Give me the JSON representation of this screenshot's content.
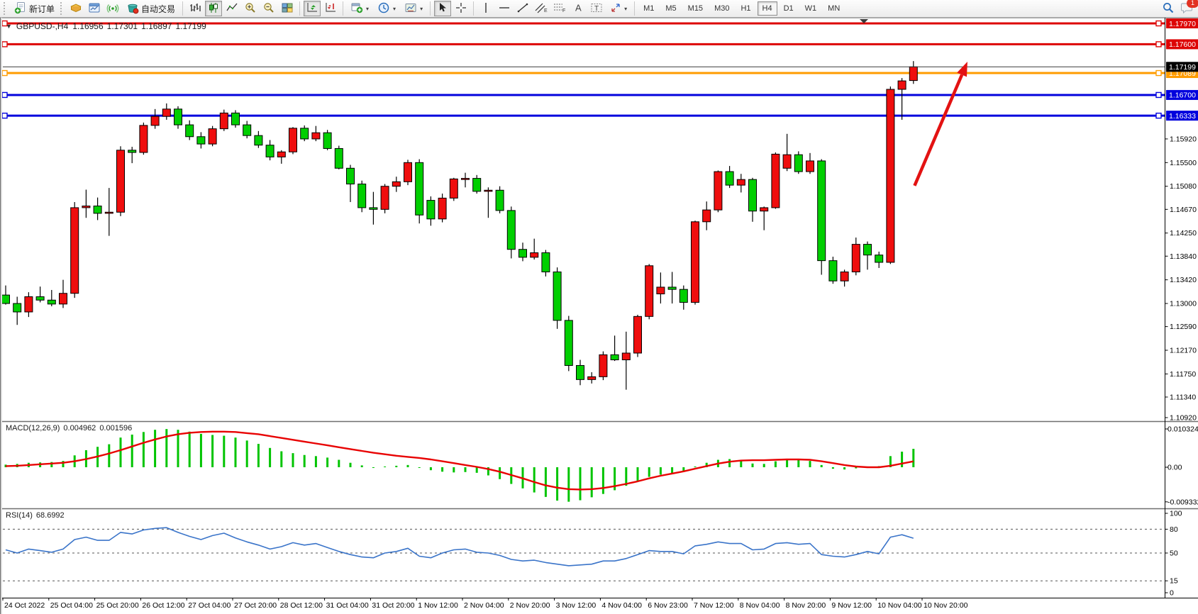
{
  "toolbar": {
    "new_order": "新订单",
    "auto_trading": "自动交易",
    "timeframes": [
      "M1",
      "M5",
      "M15",
      "M30",
      "H1",
      "H4",
      "D1",
      "W1",
      "MN"
    ],
    "active_timeframe": "H4",
    "badge_count": "1",
    "icons": [
      "new-order-icon",
      "box-icon",
      "chart-window-icon",
      "signal-icon",
      "auto-trading-icon",
      "bar-chart-icon",
      "candlestick-icon",
      "line-chart-icon",
      "zoom-in-icon",
      "zoom-out-icon",
      "tile-windows-icon",
      "auto-scroll-icon",
      "chart-shift-icon",
      "new-chart-icon",
      "period-clock-icon",
      "template-icon",
      "cursor-icon",
      "crosshair-icon",
      "vertical-line-icon",
      "horizontal-line-icon",
      "trendline-icon",
      "channel-icon",
      "fibonacci-icon",
      "text-icon",
      "label-icon",
      "arrow-shapes-icon",
      "search-icon",
      "chat-icon"
    ]
  },
  "chart_data": {
    "type": "candlestick",
    "title": {
      "symbol_period": "GBPUSD-,H4",
      "open": "1.16956",
      "high": "1.17301",
      "low": "1.16897",
      "close": "1.17199"
    },
    "up_color": "#ef0e0e",
    "down_color": "#00cf00",
    "bid": {
      "v": 1.17199,
      "t": "1.17199"
    },
    "horizontal_lines": [
      {
        "v": 1.1797,
        "t": "1.17970",
        "c": "#dd0404"
      },
      {
        "v": 1.176,
        "t": "1.17600",
        "c": "#dd0404"
      },
      {
        "v": 1.17089,
        "t": "1.17089",
        "c": "#ff9c00"
      },
      {
        "v": 1.167,
        "t": "1.16700",
        "c": "#0202dd"
      },
      {
        "v": 1.16333,
        "t": "1.16333",
        "c": "#0202dd"
      }
    ],
    "price_axis_ticks": [
      {
        "v": 1.1592,
        "t": "1.15920"
      },
      {
        "v": 1.155,
        "t": "1.15500"
      },
      {
        "v": 1.1508,
        "t": "1.15080"
      },
      {
        "v": 1.1467,
        "t": "1.14670"
      },
      {
        "v": 1.1425,
        "t": "1.14250"
      },
      {
        "v": 1.1384,
        "t": "1.13840"
      },
      {
        "v": 1.1342,
        "t": "1.13420"
      },
      {
        "v": 1.13,
        "t": "1.13000"
      },
      {
        "v": 1.1259,
        "t": "1.12590"
      },
      {
        "v": 1.1217,
        "t": "1.12170"
      },
      {
        "v": 1.1175,
        "t": "1.11750"
      },
      {
        "v": 1.1134,
        "t": "1.11340"
      },
      {
        "v": 1.1092,
        "t": "1.10920"
      }
    ],
    "time_labels": [
      "24 Oct 2022",
      "25 Oct 04:00",
      "25 Oct 20:00",
      "26 Oct 12:00",
      "27 Oct 04:00",
      "27 Oct 20:00",
      "28 Oct 12:00",
      "31 Oct 04:00",
      "31 Oct 20:00",
      "1 Nov 12:00",
      "2 Nov 04:00",
      "2 Nov 20:00",
      "3 Nov 12:00",
      "4 Nov 04:00",
      "6 Nov 23:00",
      "7 Nov 12:00",
      "8 Nov 04:00",
      "8 Nov 20:00",
      "9 Nov 12:00",
      "10 Nov 04:00",
      "10 Nov 20:00"
    ],
    "candles": [
      [
        1.1315,
        1.1332,
        1.1298,
        1.13
      ],
      [
        1.13,
        1.1312,
        1.1262,
        1.1285
      ],
      [
        1.1285,
        1.132,
        1.1276,
        1.1312
      ],
      [
        1.1312,
        1.133,
        1.1302,
        1.1306
      ],
      [
        1.1306,
        1.1324,
        1.1295,
        1.1299
      ],
      [
        1.1299,
        1.1342,
        1.1292,
        1.1318
      ],
      [
        1.1318,
        1.148,
        1.131,
        1.147
      ],
      [
        1.147,
        1.1502,
        1.1452,
        1.1473
      ],
      [
        1.1473,
        1.1488,
        1.1448,
        1.146
      ],
      [
        1.146,
        1.1505,
        1.142,
        1.1462
      ],
      [
        1.1462,
        1.1579,
        1.1455,
        1.1572
      ],
      [
        1.1572,
        1.1578,
        1.1549,
        1.1568
      ],
      [
        1.1568,
        1.1621,
        1.1564,
        1.1616
      ],
      [
        1.1616,
        1.1645,
        1.161,
        1.1632
      ],
      [
        1.1632,
        1.1655,
        1.1626,
        1.1645
      ],
      [
        1.1645,
        1.165,
        1.161,
        1.1617
      ],
      [
        1.1617,
        1.1625,
        1.159,
        1.1596
      ],
      [
        1.1596,
        1.1604,
        1.1575,
        1.1583
      ],
      [
        1.1583,
        1.1615,
        1.1579,
        1.161
      ],
      [
        1.161,
        1.1644,
        1.1606,
        1.1638
      ],
      [
        1.1638,
        1.1643,
        1.1612,
        1.1617
      ],
      [
        1.1617,
        1.1624,
        1.1593,
        1.1598
      ],
      [
        1.1598,
        1.1606,
        1.1576,
        1.1581
      ],
      [
        1.1581,
        1.159,
        1.1554,
        1.156
      ],
      [
        1.156,
        1.1572,
        1.1548,
        1.1569
      ],
      [
        1.1569,
        1.1613,
        1.1565,
        1.1611
      ],
      [
        1.1611,
        1.1616,
        1.1588,
        1.1592
      ],
      [
        1.1592,
        1.1615,
        1.1588,
        1.1603
      ],
      [
        1.1603,
        1.1608,
        1.1572,
        1.1575
      ],
      [
        1.1575,
        1.158,
        1.1538,
        1.154
      ],
      [
        1.154,
        1.1546,
        1.148,
        1.1512
      ],
      [
        1.1512,
        1.1518,
        1.1462,
        1.147
      ],
      [
        1.147,
        1.1498,
        1.144,
        1.1467
      ],
      [
        1.1467,
        1.1512,
        1.146,
        1.1508
      ],
      [
        1.1508,
        1.1525,
        1.1498,
        1.1516
      ],
      [
        1.1516,
        1.1555,
        1.151,
        1.155
      ],
      [
        1.155,
        1.1556,
        1.1442,
        1.1457
      ],
      [
        1.1483,
        1.149,
        1.1438,
        1.145
      ],
      [
        1.145,
        1.1495,
        1.1444,
        1.1487
      ],
      [
        1.1487,
        1.1523,
        1.1482,
        1.1521
      ],
      [
        1.1521,
        1.1532,
        1.1506,
        1.1522
      ],
      [
        1.1522,
        1.1528,
        1.1495,
        1.1499
      ],
      [
        1.1499,
        1.1506,
        1.1452,
        1.1501
      ],
      [
        1.1501,
        1.1508,
        1.146,
        1.1465
      ],
      [
        1.1465,
        1.1472,
        1.138,
        1.1396
      ],
      [
        1.1396,
        1.1408,
        1.1375,
        1.1382
      ],
      [
        1.1382,
        1.1415,
        1.1378,
        1.139
      ],
      [
        1.139,
        1.1395,
        1.1348,
        1.1356
      ],
      [
        1.1356,
        1.1364,
        1.1255,
        1.127
      ],
      [
        1.127,
        1.1278,
        1.118,
        1.119
      ],
      [
        1.119,
        1.12,
        1.1155,
        1.1165
      ],
      [
        1.1165,
        1.1178,
        1.1158,
        1.117
      ],
      [
        1.117,
        1.1215,
        1.1164,
        1.1209
      ],
      [
        1.1209,
        1.1243,
        1.1198,
        1.12
      ],
      [
        1.12,
        1.125,
        1.1147,
        1.1212
      ],
      [
        1.1212,
        1.128,
        1.1205,
        1.1277
      ],
      [
        1.1277,
        1.137,
        1.1272,
        1.1367
      ],
      [
        1.1317,
        1.1355,
        1.13,
        1.1329
      ],
      [
        1.1329,
        1.1356,
        1.13,
        1.1325
      ],
      [
        1.1325,
        1.1332,
        1.1289,
        1.1302
      ],
      [
        1.1302,
        1.1447,
        1.1298,
        1.1445
      ],
      [
        1.1445,
        1.1481,
        1.143,
        1.1466
      ],
      [
        1.1466,
        1.1536,
        1.1462,
        1.1534
      ],
      [
        1.1534,
        1.1544,
        1.1505,
        1.151
      ],
      [
        1.151,
        1.153,
        1.1497,
        1.152
      ],
      [
        1.152,
        1.1523,
        1.1445,
        1.1464
      ],
      [
        1.1464,
        1.1472,
        1.143,
        1.147
      ],
      [
        1.147,
        1.1568,
        1.1468,
        1.1565
      ],
      [
        1.154,
        1.1601,
        1.1535,
        1.1564
      ],
      [
        1.1564,
        1.157,
        1.153,
        1.1534
      ],
      [
        1.1534,
        1.1567,
        1.153,
        1.1553
      ],
      [
        1.1553,
        1.1556,
        1.1351,
        1.1376
      ],
      [
        1.1376,
        1.1383,
        1.1335,
        1.134
      ],
      [
        1.134,
        1.136,
        1.133,
        1.1356
      ],
      [
        1.1356,
        1.1417,
        1.135,
        1.1405
      ],
      [
        1.1405,
        1.141,
        1.136,
        1.1386
      ],
      [
        1.1386,
        1.1392,
        1.1363,
        1.1373
      ],
      [
        1.1373,
        1.1685,
        1.137,
        1.168
      ],
      [
        1.168,
        1.17,
        1.1626,
        1.1695
      ],
      [
        1.16956,
        1.17301,
        1.16897,
        1.17199
      ]
    ],
    "macd": {
      "label": "MACD(12,26,9)",
      "value_main": "0.004962",
      "value_signal": "0.001596",
      "hist_color": "#00c400",
      "signal_color": "#e80202",
      "axis_ticks": [
        {
          "v": 0.010324,
          "t": "0.010324"
        },
        {
          "v": 0,
          "t": "0.00"
        },
        {
          "v": -0.009332,
          "t": "-0.009332"
        }
      ],
      "hist": [
        0.0007,
        0.0009,
        0.0012,
        0.0013,
        0.0014,
        0.0017,
        0.0032,
        0.0046,
        0.0055,
        0.0062,
        0.008,
        0.0088,
        0.0095,
        0.0101,
        0.0103,
        0.0101,
        0.0096,
        0.009,
        0.0087,
        0.0085,
        0.008,
        0.0072,
        0.0063,
        0.0052,
        0.0043,
        0.0038,
        0.0033,
        0.003,
        0.0026,
        0.002,
        0.0012,
        0.0005,
        0.0,
        0.0002,
        0.0004,
        0.0006,
        0.0,
        -0.0008,
        -0.0012,
        -0.0014,
        -0.0013,
        -0.0015,
        -0.0022,
        -0.0032,
        -0.0045,
        -0.0057,
        -0.0068,
        -0.008,
        -0.009,
        -0.0093,
        -0.0089,
        -0.0081,
        -0.0072,
        -0.0062,
        -0.005,
        -0.0038,
        -0.0026,
        -0.002,
        -0.0018,
        -0.0012,
        0.0002,
        0.0012,
        0.002,
        0.0022,
        0.0018,
        0.001,
        0.0009,
        0.0016,
        0.0022,
        0.0021,
        0.0017,
        0.0006,
        -0.0004,
        -0.0006,
        -0.0003,
        0.0002,
        0.0003,
        0.003,
        0.0042,
        0.004962
      ],
      "signal": [
        0.0003,
        0.0004,
        0.0006,
        0.0008,
        0.001,
        0.0012,
        0.0016,
        0.0022,
        0.0029,
        0.0037,
        0.0046,
        0.0056,
        0.0066,
        0.0075,
        0.0083,
        0.0089,
        0.0093,
        0.0095,
        0.0096,
        0.0096,
        0.0095,
        0.0092,
        0.0089,
        0.0084,
        0.0079,
        0.0074,
        0.0069,
        0.0064,
        0.0059,
        0.0054,
        0.0049,
        0.0044,
        0.0039,
        0.0035,
        0.0031,
        0.0028,
        0.0025,
        0.0021,
        0.0016,
        0.0011,
        0.0006,
        0.0001,
        -0.0005,
        -0.0012,
        -0.0021,
        -0.003,
        -0.004,
        -0.0049,
        -0.0055,
        -0.0059,
        -0.006,
        -0.0059,
        -0.0056,
        -0.0051,
        -0.0045,
        -0.0038,
        -0.003,
        -0.0023,
        -0.0017,
        -0.0011,
        -0.0004,
        0.0003,
        0.001,
        0.0015,
        0.0018,
        0.0019,
        0.0019,
        0.002,
        0.0021,
        0.0021,
        0.002,
        0.0016,
        0.0011,
        0.0006,
        0.0002,
        0.0,
        0.0,
        0.0004,
        0.001,
        0.001596
      ]
    },
    "rsi": {
      "label": "RSI(14)",
      "value": "68.6992",
      "color": "#3a74c9",
      "levels": [
        80,
        50,
        15
      ],
      "axis_ticks": [
        {
          "v": 100,
          "t": "100"
        },
        {
          "v": 80,
          "t": "80"
        },
        {
          "v": 50,
          "t": "50"
        },
        {
          "v": 15,
          "t": "15"
        },
        {
          "v": 0,
          "t": "0"
        }
      ],
      "series": [
        54,
        50,
        55,
        53,
        51,
        55,
        67,
        70,
        66,
        66,
        76,
        74,
        79,
        81,
        82,
        76,
        71,
        67,
        72,
        75,
        69,
        64,
        60,
        55,
        58,
        63,
        60,
        62,
        57,
        52,
        48,
        45,
        44,
        50,
        52,
        56,
        46,
        44,
        50,
        54,
        55,
        51,
        50,
        47,
        42,
        40,
        41,
        38,
        36,
        34,
        35,
        36,
        40,
        40,
        43,
        48,
        53,
        52,
        52,
        49,
        59,
        61,
        64,
        62,
        62,
        54,
        55,
        62,
        63,
        61,
        62,
        48,
        46,
        45,
        48,
        52,
        49,
        70,
        73,
        68.7
      ]
    },
    "arrow": {
      "from_bar": 79.1,
      "from_price": 1.1509,
      "to_bar": 83.7,
      "to_price": 1.1729,
      "color": "#e31212"
    }
  }
}
